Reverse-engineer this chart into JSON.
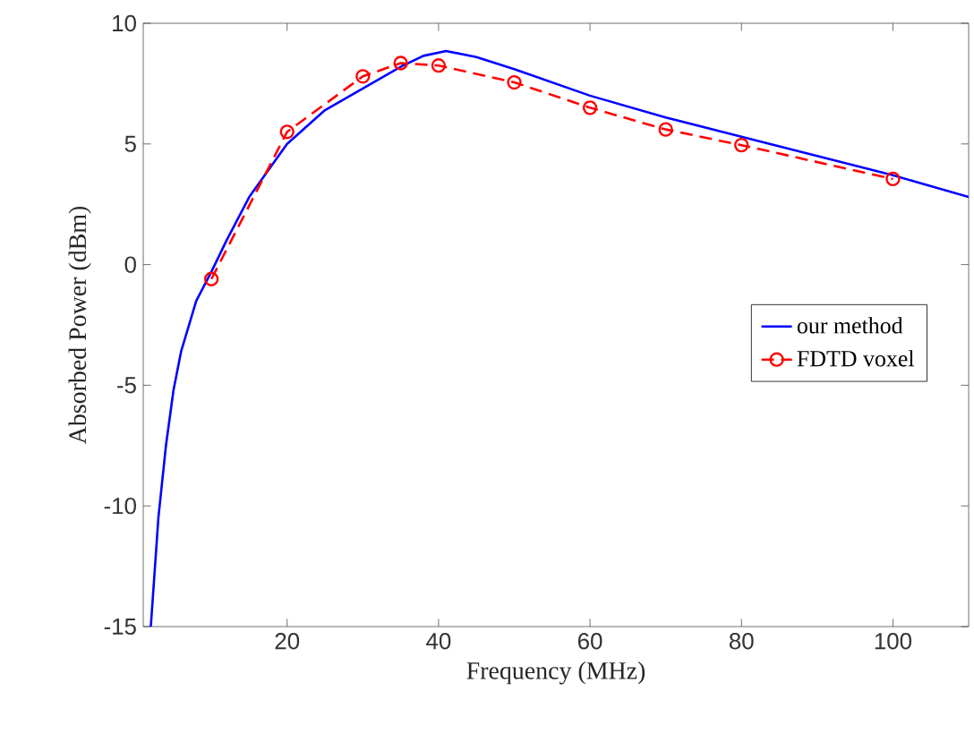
{
  "chart_data": {
    "type": "line",
    "xlabel": "Frequency (MHz)",
    "ylabel": "Absorbed Power (dBm)",
    "xlim": [
      1,
      110
    ],
    "ylim": [
      -15,
      10
    ],
    "xticks": [
      20,
      40,
      60,
      80,
      100
    ],
    "yticks": [
      -15,
      -10,
      -5,
      0,
      5,
      10
    ],
    "legend": "right",
    "grid": false,
    "series": [
      {
        "name": "our method",
        "color": "#0000ff",
        "line_style": "solid",
        "marker": "none",
        "x": [
          2,
          3,
          4,
          5,
          6,
          8,
          10,
          12,
          15,
          20,
          25,
          30,
          35,
          38,
          41,
          45,
          50,
          60,
          70,
          80,
          90,
          100,
          110
        ],
        "values": [
          -15,
          -10.5,
          -7.5,
          -5.2,
          -3.6,
          -1.5,
          -0.3,
          1.0,
          2.8,
          5.0,
          6.4,
          7.3,
          8.2,
          8.65,
          8.85,
          8.6,
          8.1,
          7.0,
          6.1,
          5.3,
          4.5,
          3.7,
          2.8
        ]
      },
      {
        "name": "FDTD voxel",
        "color": "#ff0000",
        "line_style": "dashed",
        "marker": "circle",
        "x": [
          10,
          20,
          30,
          35,
          40,
          50,
          60,
          70,
          80,
          100
        ],
        "values": [
          -0.6,
          5.5,
          7.8,
          8.35,
          8.25,
          7.55,
          6.5,
          5.6,
          4.95,
          3.55
        ]
      }
    ]
  }
}
